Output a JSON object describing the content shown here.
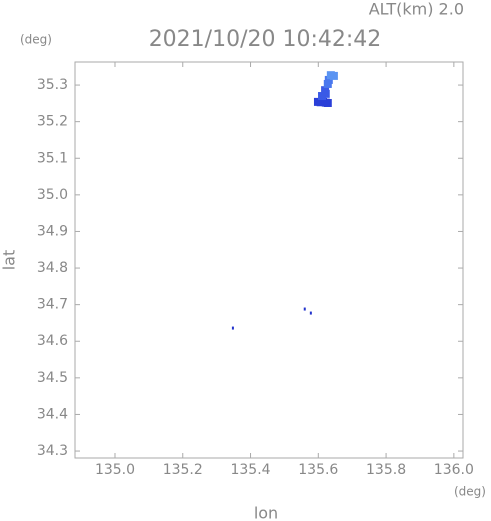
{
  "chart_data": {
    "type": "scatter",
    "title": "2021/10/20 10:42:42",
    "annotation": "ALT(km) 2.0",
    "y_unit": "(deg)",
    "x_unit": "(deg)",
    "xlabel": "lon",
    "ylabel": "lat",
    "xlim": [
      134.882,
      136.027
    ],
    "ylim": [
      34.281,
      35.363
    ],
    "xticks": [
      {
        "value": 135,
        "label": "135.0"
      },
      135.2,
      135.4,
      135.6,
      135.8,
      {
        "value": 136,
        "label": "136.0"
      }
    ],
    "yticks": [
      34.3,
      34.4,
      34.5,
      34.6,
      34.7,
      34.8,
      34.9,
      {
        "value": 35,
        "label": "35.0"
      },
      35.1,
      35.2,
      35.3
    ],
    "x": [
      135.348,
      135.56,
      135.578,
      135.599,
      135.607,
      135.614,
      135.622,
      135.628,
      135.611,
      135.62,
      135.622,
      135.628,
      135.631,
      135.637,
      135.646
    ],
    "y": [
      34.636,
      34.688,
      34.677,
      35.254,
      35.253,
      35.254,
      35.252,
      35.251,
      35.27,
      35.286,
      35.276,
      35.303,
      35.314,
      35.327,
      35.325
    ],
    "colors": [
      "#2233cc",
      "#2233cc",
      "#2233cc",
      "#2a3fd8",
      "#2a3fd8",
      "#2a3fd8",
      "#2a3fd8",
      "#2a3fd8",
      "#3a5ae6",
      "#3a5ae6",
      "#3a5ae6",
      "#4a78ee",
      "#4a78ee",
      "#5b94f2",
      "#5b94f2"
    ]
  }
}
